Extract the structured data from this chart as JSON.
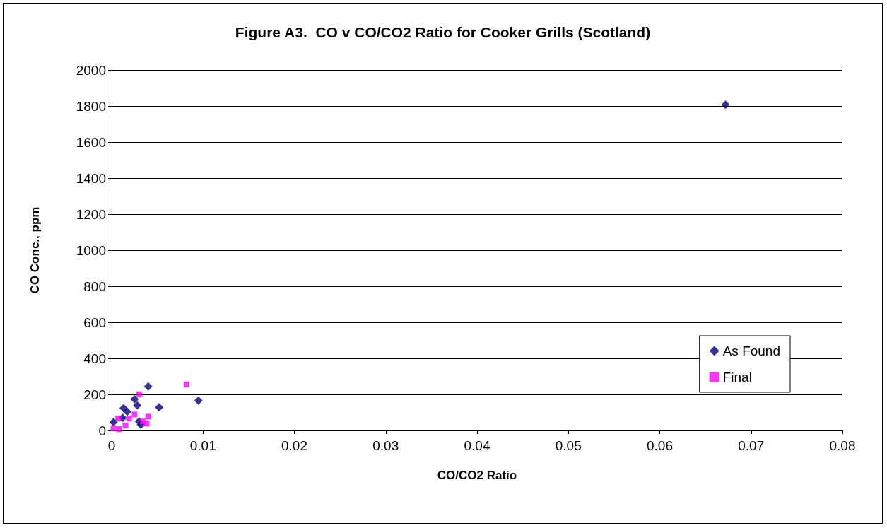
{
  "chart_data": {
    "type": "scatter",
    "title": "Figure A3.  CO v CO/CO2 Ratio for Cooker Grills (Scotland)",
    "xlabel": "CO/CO2 Ratio",
    "ylabel": "CO Conc., ppm",
    "xlim": [
      0,
      0.08
    ],
    "xticks": [
      0,
      0.01,
      0.02,
      0.03,
      0.04,
      0.05,
      0.06,
      0.07,
      0.08
    ],
    "ylim": [
      0,
      2000
    ],
    "yticks": [
      0,
      200,
      400,
      600,
      800,
      1000,
      1200,
      1400,
      1600,
      1800,
      2000
    ],
    "grid": "y",
    "legend": "right",
    "series": [
      {
        "name": "As Found",
        "color": "#000080",
        "marker": "diamond",
        "x": [
          0.004,
          0.0095,
          0.0052,
          0.0013,
          0.0028,
          0.0025,
          0.0017,
          0.0012,
          0.003,
          0.0032,
          0.0672,
          0.0002
        ],
        "values": [
          244,
          166,
          128,
          124,
          139,
          174,
          104,
          70,
          50,
          31,
          1807,
          46
        ]
      },
      {
        "name": "Final",
        "color": "#ff00ff",
        "marker": "square",
        "x": [
          0.0082,
          0.003,
          0.0025,
          0.004,
          0.0038,
          0.0034,
          0.0007,
          0.0019,
          0.0015,
          0.0002,
          0.0008
        ],
        "values": [
          255,
          201,
          89,
          77,
          39,
          50,
          66,
          66,
          27,
          12,
          8
        ]
      }
    ]
  }
}
